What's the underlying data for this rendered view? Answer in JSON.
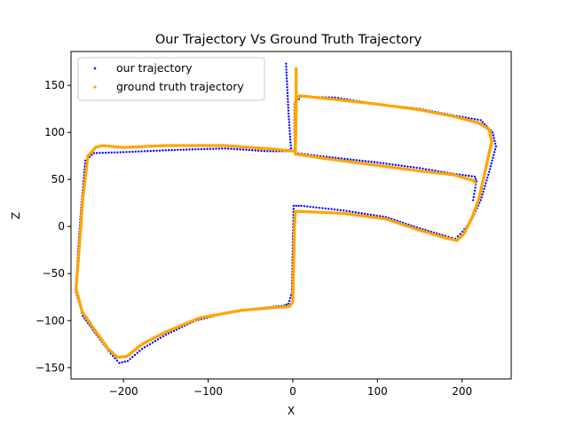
{
  "chart_data": {
    "type": "scatter",
    "title": "Our Trajectory Vs Ground Truth Trajectory",
    "xlabel": "X",
    "ylabel": "Z",
    "xlim": [
      -262,
      258
    ],
    "ylim": [
      -162,
      186
    ],
    "xticks": [
      -200,
      -100,
      0,
      100,
      200
    ],
    "yticks": [
      -150,
      -100,
      -50,
      0,
      50,
      100,
      150
    ],
    "grid": false,
    "legend_position": "upper-left",
    "series": [
      {
        "name": "our trajectory",
        "color": "#0000ff",
        "marker_size": 1.2,
        "path": [
          [
            -8,
            173
          ],
          [
            -5,
            120
          ],
          [
            -2,
            80
          ],
          [
            -30,
            80
          ],
          [
            -80,
            83
          ],
          [
            -150,
            81
          ],
          [
            -200,
            79
          ],
          [
            -235,
            78
          ],
          [
            -245,
            70
          ],
          [
            -250,
            20
          ],
          [
            -254,
            -30
          ],
          [
            -256,
            -70
          ],
          [
            -248,
            -95
          ],
          [
            -232,
            -115
          ],
          [
            -215,
            -135
          ],
          [
            -205,
            -145
          ],
          [
            -195,
            -143
          ],
          [
            -178,
            -130
          ],
          [
            -150,
            -115
          ],
          [
            -115,
            -100
          ],
          [
            -70,
            -90
          ],
          [
            -30,
            -86
          ],
          [
            -10,
            -84
          ],
          [
            -5,
            -82
          ],
          [
            -1,
            -70
          ],
          [
            0,
            -20
          ],
          [
            1,
            22
          ],
          [
            10,
            22
          ],
          [
            60,
            17
          ],
          [
            110,
            10
          ],
          [
            150,
            -2
          ],
          [
            180,
            -10
          ],
          [
            192,
            -13
          ],
          [
            198,
            -8
          ],
          [
            210,
            5
          ],
          [
            222,
            28
          ],
          [
            232,
            58
          ],
          [
            240,
            85
          ],
          [
            236,
            100
          ],
          [
            222,
            113
          ],
          [
            190,
            118
          ],
          [
            150,
            125
          ],
          [
            100,
            130
          ],
          [
            50,
            137
          ],
          [
            10,
            138
          ],
          [
            2,
            130
          ],
          [
            2,
            100
          ],
          [
            3,
            78
          ],
          [
            40,
            74
          ],
          [
            100,
            68
          ],
          [
            150,
            62
          ],
          [
            190,
            56
          ],
          [
            215,
            53
          ],
          [
            217,
            48
          ],
          [
            213,
            28
          ]
        ]
      },
      {
        "name": "ground truth trajectory",
        "color": "#ffa500",
        "marker_size": 1.6,
        "path": [
          [
            4,
            168
          ],
          [
            4,
            120
          ],
          [
            3,
            80
          ],
          [
            -20,
            82
          ],
          [
            -80,
            86
          ],
          [
            -150,
            86
          ],
          [
            -200,
            84
          ],
          [
            -225,
            86
          ],
          [
            -233,
            84
          ],
          [
            -242,
            75
          ],
          [
            -248,
            30
          ],
          [
            -252,
            -20
          ],
          [
            -256,
            -66
          ],
          [
            -249,
            -90
          ],
          [
            -234,
            -110
          ],
          [
            -218,
            -130
          ],
          [
            -207,
            -139
          ],
          [
            -196,
            -138
          ],
          [
            -178,
            -125
          ],
          [
            -150,
            -112
          ],
          [
            -110,
            -97
          ],
          [
            -60,
            -89
          ],
          [
            -20,
            -86
          ],
          [
            -4,
            -85
          ],
          [
            0,
            -80
          ],
          [
            1,
            -40
          ],
          [
            2,
            0
          ],
          [
            3,
            16
          ],
          [
            10,
            16
          ],
          [
            60,
            14
          ],
          [
            110,
            8
          ],
          [
            150,
            -4
          ],
          [
            180,
            -12
          ],
          [
            194,
            -15
          ],
          [
            202,
            -8
          ],
          [
            212,
            10
          ],
          [
            220,
            30
          ],
          [
            228,
            62
          ],
          [
            235,
            90
          ],
          [
            232,
            103
          ],
          [
            220,
            110
          ],
          [
            190,
            117
          ],
          [
            150,
            124
          ],
          [
            100,
            130
          ],
          [
            50,
            135
          ],
          [
            8,
            139
          ],
          [
            3,
            133
          ],
          [
            3,
            100
          ],
          [
            3,
            77
          ],
          [
            40,
            72
          ],
          [
            100,
            65
          ],
          [
            150,
            59
          ],
          [
            190,
            55
          ],
          [
            213,
            49
          ],
          [
            216,
            46
          ]
        ]
      }
    ]
  }
}
